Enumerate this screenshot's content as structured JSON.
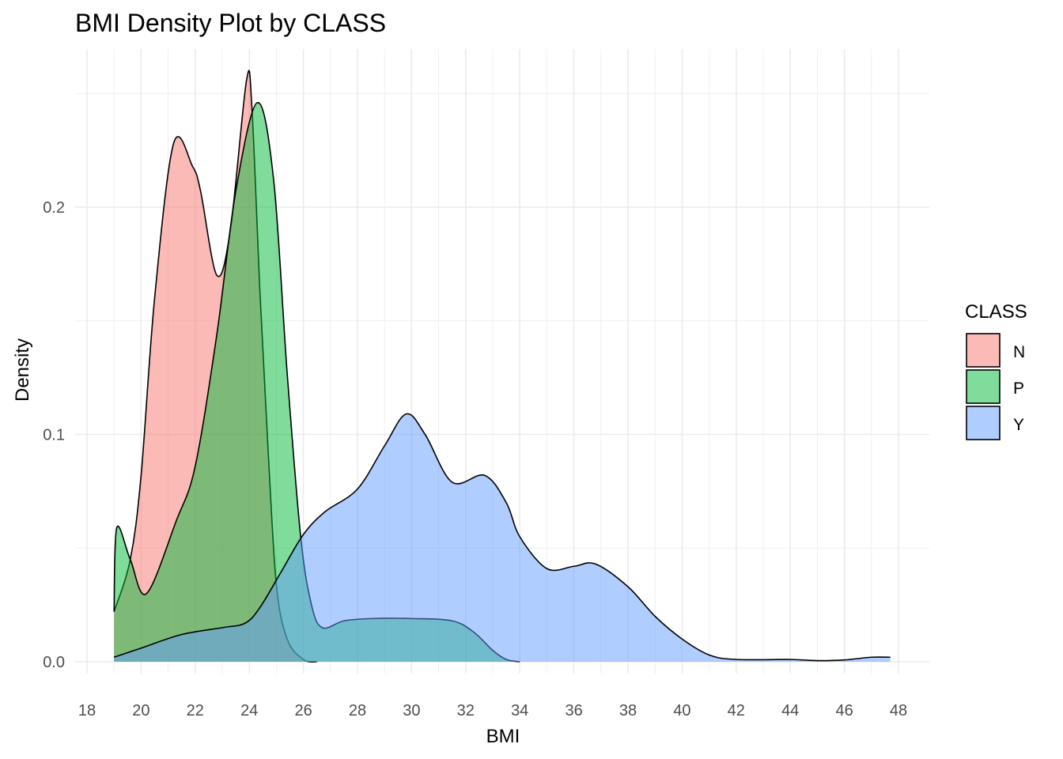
{
  "chart_data": {
    "type": "area",
    "subtype": "density",
    "title": "BMI Density Plot by CLASS",
    "xlabel": "BMI",
    "ylabel": "Density",
    "xlim": [
      17.5,
      49
    ],
    "ylim": [
      -0.01,
      0.27
    ],
    "xticks": [
      "18",
      "20",
      "22",
      "24",
      "26",
      "28",
      "30",
      "32",
      "34",
      "36",
      "38",
      "40",
      "42",
      "44",
      "46",
      "48"
    ],
    "yticks": [
      "0.0",
      "0.1",
      "0.2"
    ],
    "grid": true,
    "legend": {
      "title": "CLASS",
      "position": "right"
    },
    "series": [
      {
        "name": "N",
        "color": "#F8766D",
        "x": [
          19,
          19.6,
          20,
          20.5,
          21.2,
          21.9,
          22.2,
          22.8,
          23.3,
          23.9,
          24.1,
          24.4,
          24.7,
          25.0,
          25.4,
          26.0,
          26.5
        ],
        "y": [
          0.022,
          0.045,
          0.082,
          0.16,
          0.228,
          0.218,
          0.207,
          0.17,
          0.19,
          0.256,
          0.243,
          0.161,
          0.092,
          0.034,
          0.01,
          0.001,
          0.0
        ]
      },
      {
        "name": "P",
        "color": "#00BA38",
        "x": [
          19,
          19.1,
          19.6,
          20.2,
          21.3,
          22.0,
          22.8,
          23.5,
          24.3,
          24.9,
          25.4,
          25.9,
          26.3,
          26.7,
          27.5,
          28.5,
          30,
          31.5,
          32.3,
          33,
          33.5,
          34
        ],
        "y": [
          0.022,
          0.059,
          0.045,
          0.03,
          0.062,
          0.086,
          0.144,
          0.207,
          0.246,
          0.212,
          0.127,
          0.055,
          0.025,
          0.015,
          0.018,
          0.019,
          0.019,
          0.018,
          0.013,
          0.005,
          0.001,
          0.0
        ]
      },
      {
        "name": "Y",
        "color": "#619CFF",
        "x": [
          19,
          20,
          21.5,
          23,
          23.85,
          24.4,
          25.2,
          26,
          26.8,
          28,
          29,
          29.8,
          30.5,
          31.5,
          32.7,
          33.5,
          34,
          35,
          36,
          36.8,
          38,
          39,
          40,
          41,
          42,
          44,
          45,
          46,
          47,
          47.7
        ],
        "y": [
          0.002,
          0.006,
          0.012,
          0.015,
          0.017,
          0.024,
          0.04,
          0.056,
          0.066,
          0.076,
          0.095,
          0.109,
          0.1,
          0.079,
          0.082,
          0.07,
          0.055,
          0.041,
          0.042,
          0.043,
          0.033,
          0.02,
          0.01,
          0.003,
          0.001,
          0.001,
          0.0005,
          0.0008,
          0.002,
          0.002
        ]
      }
    ]
  }
}
